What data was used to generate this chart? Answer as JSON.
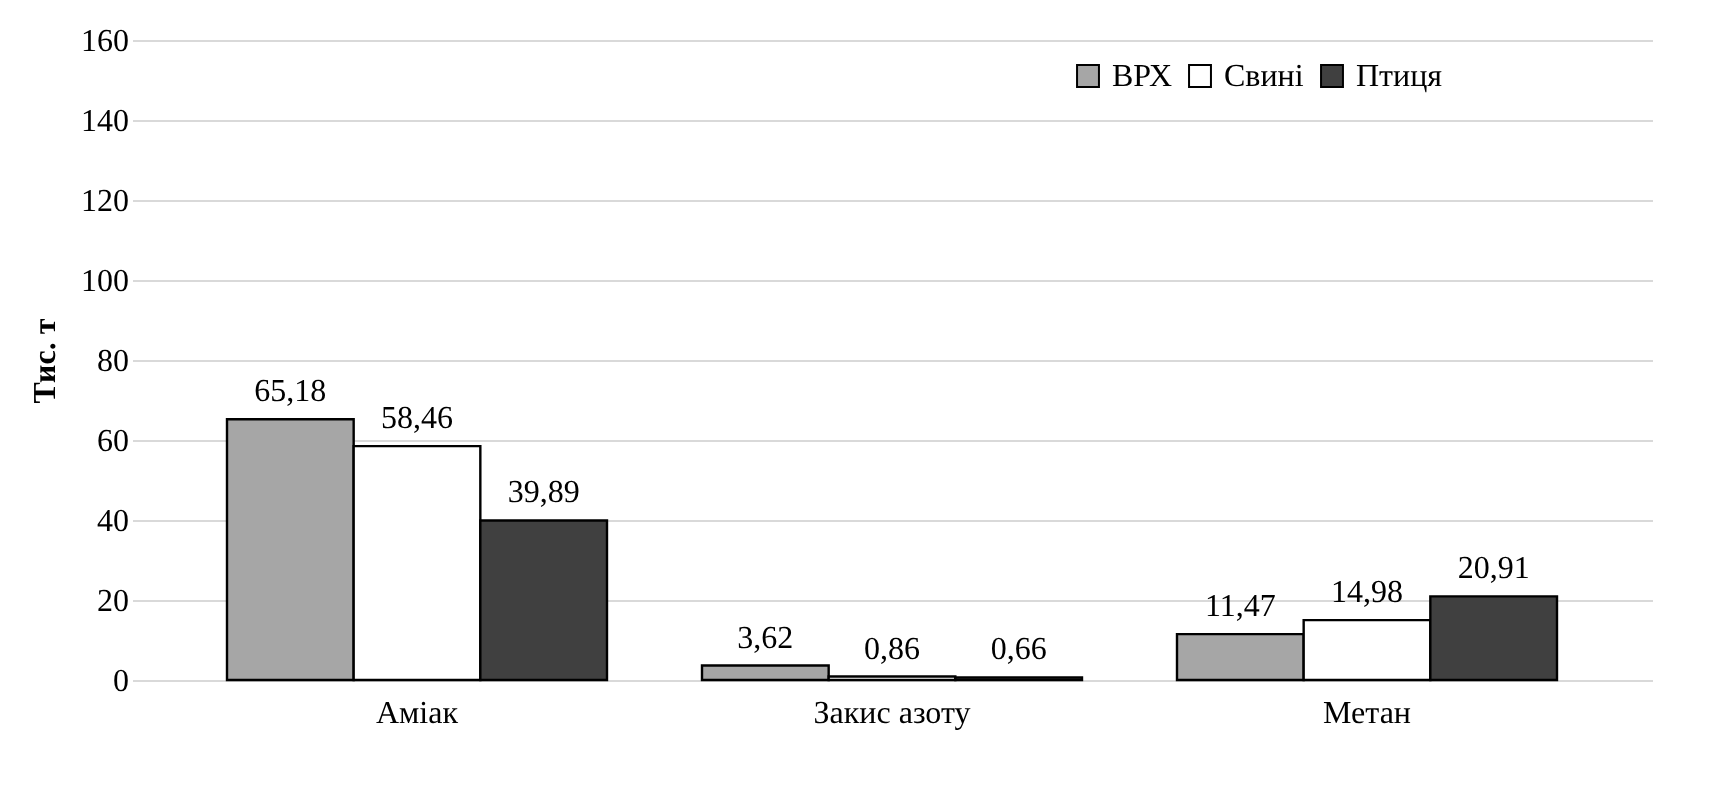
{
  "chart_data": {
    "type": "bar",
    "ylabel": "Тис. т",
    "categories": [
      "Аміак",
      "Закис азоту",
      "Метан"
    ],
    "series": [
      {
        "name": "ВРХ",
        "color": "#a6a6a6",
        "values": [
          65.18,
          3.62,
          11.47
        ],
        "value_labels": [
          "65,18",
          "3,62",
          "11,47"
        ]
      },
      {
        "name": "Свині",
        "color": "#ffffff",
        "values": [
          58.46,
          0.86,
          14.98
        ],
        "value_labels": [
          "58,46",
          "0,86",
          "14,98"
        ]
      },
      {
        "name": "Птиця",
        "color": "#404040",
        "values": [
          39.89,
          0.66,
          20.91
        ],
        "value_labels": [
          "39,89",
          "0,66",
          "20,91"
        ]
      }
    ],
    "ylim": [
      0,
      160
    ],
    "yticks": [
      0,
      20,
      40,
      60,
      80,
      100,
      120,
      140,
      160
    ],
    "grid": "y",
    "legend": "top right"
  }
}
